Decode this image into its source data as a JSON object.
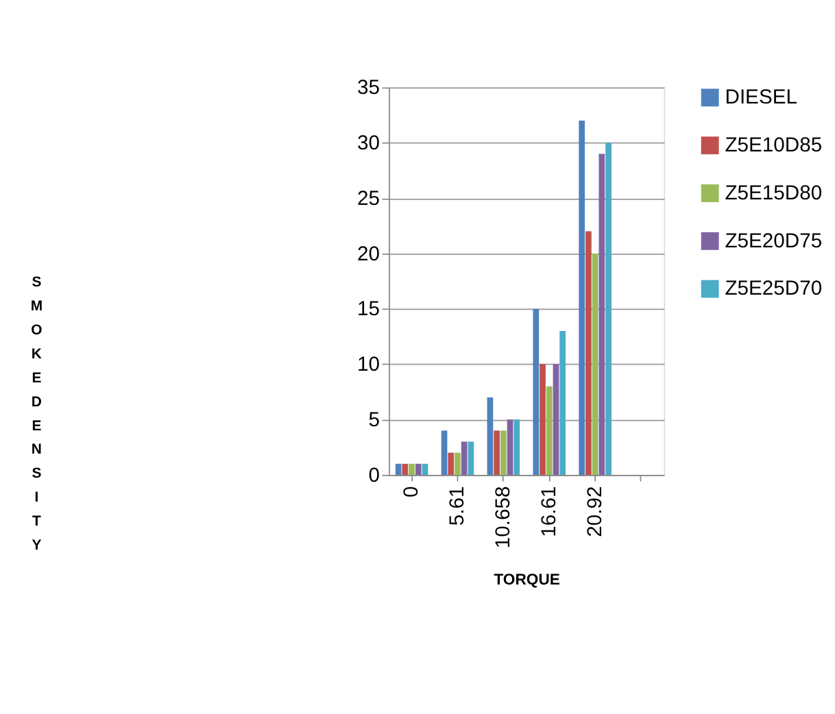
{
  "chart_data": {
    "type": "bar",
    "xlabel": "TORQUE",
    "ylabel": "SMOKE DENSITY",
    "categories": [
      "0",
      "5.61",
      "10.658",
      "16.61",
      "20.92",
      null
    ],
    "series": [
      {
        "name": "DIESEL",
        "color": "#4f81bd",
        "values": [
          1,
          4,
          7,
          15,
          32,
          null
        ]
      },
      {
        "name": "Z5E10D85",
        "color": "#c0504d",
        "values": [
          1,
          2,
          4,
          10,
          22,
          null
        ]
      },
      {
        "name": "Z5E15D80",
        "color": "#9bbb59",
        "values": [
          1,
          2,
          4,
          8,
          20,
          null
        ]
      },
      {
        "name": "Z5E20D75",
        "color": "#8064a2",
        "values": [
          1,
          3,
          5,
          10,
          29,
          null
        ]
      },
      {
        "name": "Z5E25D70",
        "color": "#4bacc6",
        "values": [
          1,
          3,
          5,
          13,
          30,
          null
        ]
      }
    ],
    "ylim": [
      0,
      35
    ],
    "yticks": [
      0,
      5,
      10,
      15,
      20,
      25,
      30,
      35
    ],
    "grid": "y",
    "legend": "right"
  }
}
